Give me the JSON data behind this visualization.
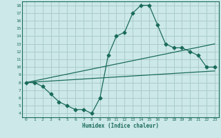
{
  "xlabel": "Humidex (Indice chaleur)",
  "bg_color": "#cce8e8",
  "grid_color": "#aacccc",
  "line_color": "#1a6b5a",
  "xlim": [
    -0.5,
    23.5
  ],
  "ylim": [
    3.5,
    18.5
  ],
  "xticks": [
    0,
    1,
    2,
    3,
    4,
    5,
    6,
    7,
    8,
    9,
    10,
    11,
    12,
    13,
    14,
    15,
    16,
    17,
    18,
    19,
    20,
    21,
    22,
    23
  ],
  "yticks": [
    4,
    5,
    6,
    7,
    8,
    9,
    10,
    11,
    12,
    13,
    14,
    15,
    16,
    17,
    18
  ],
  "line1_x": [
    0,
    1,
    2,
    3,
    4,
    5,
    6,
    7,
    8,
    9,
    10,
    11,
    12,
    13,
    14,
    15,
    16,
    17,
    18,
    19,
    20,
    21,
    22,
    23
  ],
  "line1_y": [
    8.0,
    8.0,
    7.5,
    6.5,
    5.5,
    5.0,
    4.5,
    4.5,
    4.0,
    6.0,
    11.5,
    14.0,
    14.5,
    17.0,
    18.0,
    18.0,
    15.5,
    13.0,
    12.5,
    12.5,
    12.0,
    11.5,
    10.0,
    10.0
  ],
  "line2_x": [
    0,
    23
  ],
  "line2_y": [
    8.0,
    13.0
  ],
  "line3_x": [
    0,
    23
  ],
  "line3_y": [
    8.0,
    9.5
  ],
  "markersize": 2.5,
  "linewidth": 0.9
}
